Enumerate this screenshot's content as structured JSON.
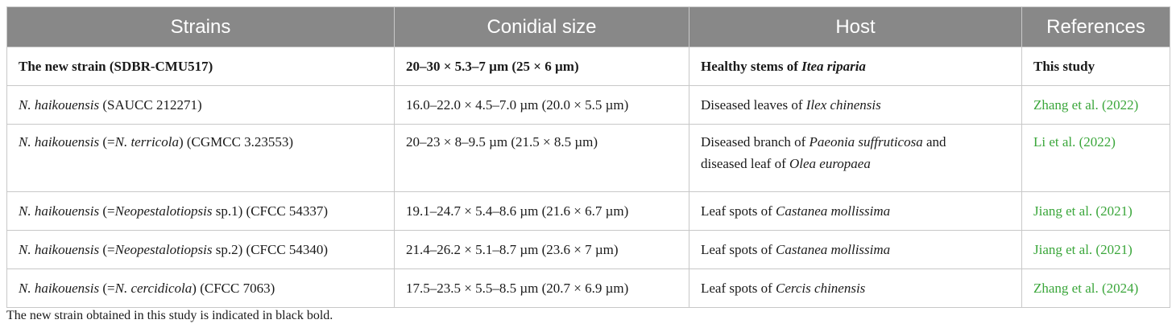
{
  "headers": [
    "Strains",
    "Conidial size",
    "Host",
    "References"
  ],
  "rows": [
    {
      "strain": [
        "The new strain (SDBR-CMU517)"
      ],
      "size": "20–30 × 5.3–7 µm (25 × 6 µm)",
      "host": [
        "Healthy stems of ",
        "Itea riparia"
      ],
      "ref": "This study"
    },
    {
      "strain": [
        "N. haikouensis",
        " (SAUCC 212271)"
      ],
      "size": "16.0–22.0 × 4.5–7.0 µm (20.0 × 5.5 µm)",
      "host": [
        "Diseased leaves of ",
        "Ilex chinensis"
      ],
      "ref": "Zhang et al. (2022)"
    },
    {
      "strain": [
        "N. haikouensis",
        " (=",
        "N. terricola",
        ") (CGMCC 3.23553)"
      ],
      "size": "20–23 × 8–9.5 µm (21.5 × 8.5 µm)",
      "host": [
        "Diseased branch of ",
        "Paeonia suffruticosa",
        " and",
        "diseased leaf of ",
        "Olea europaea"
      ],
      "ref": "Li et al. (2022)"
    },
    {
      "strain": [
        "N. haikouensis",
        " (=",
        "Neopestalotiopsis",
        " sp.1) (CFCC 54337)"
      ],
      "size": "19.1–24.7 × 5.4–8.6 µm (21.6 × 6.7 µm)",
      "host": [
        "Leaf spots of ",
        "Castanea mollissima"
      ],
      "ref": "Jiang et al. (2021)"
    },
    {
      "strain": [
        "N. haikouensis",
        " (=",
        "Neopestalotiopsis",
        " sp.2) (CFCC 54340)"
      ],
      "size": "21.4–26.2 × 5.1–8.7 µm (23.6 × 7 µm)",
      "host": [
        "Leaf spots of ",
        "Castanea mollissima"
      ],
      "ref": "Jiang et al. (2021)"
    },
    {
      "strain": [
        "N. haikouensis",
        " (=",
        "N. cercidicola",
        ") (CFCC 7063)"
      ],
      "size": "17.5–23.5 × 5.5–8.5 µm (20.7 × 6.9 µm)",
      "host": [
        "Leaf spots of ",
        "Cercis chinensis"
      ],
      "ref": "Zhang et al. (2024)"
    }
  ],
  "footnote": "The new strain obtained in this study is indicated in black bold.",
  "colors": {
    "header_bg": "#888888",
    "reference_link": "#3aa63a"
  }
}
